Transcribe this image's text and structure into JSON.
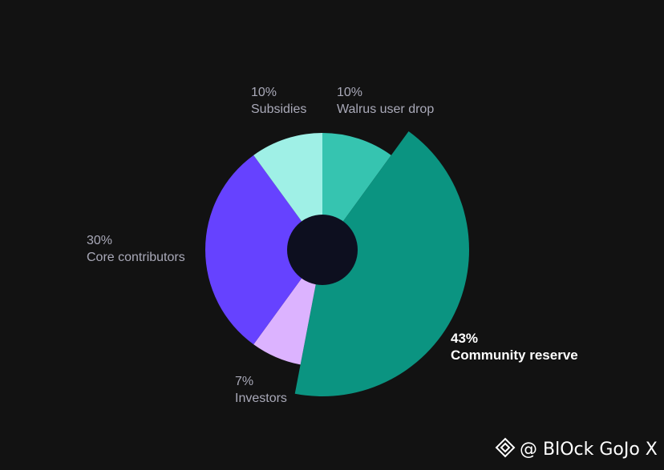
{
  "chart_data": {
    "type": "pie",
    "categories": [
      "Walrus user drop",
      "Community reserve",
      "Investors",
      "Core contributors",
      "Subsidies"
    ],
    "values": [
      10,
      43,
      7,
      30,
      10
    ],
    "value_labels": [
      "10%",
      "43%",
      "7%",
      "30%",
      "10%"
    ],
    "colors": [
      "#36c4b0",
      "#0b9481",
      "#dcb3ff",
      "#6642ff",
      "#9ff0e6"
    ],
    "highlight_index": 1
  },
  "watermark": "@ BlOck GoJo X"
}
